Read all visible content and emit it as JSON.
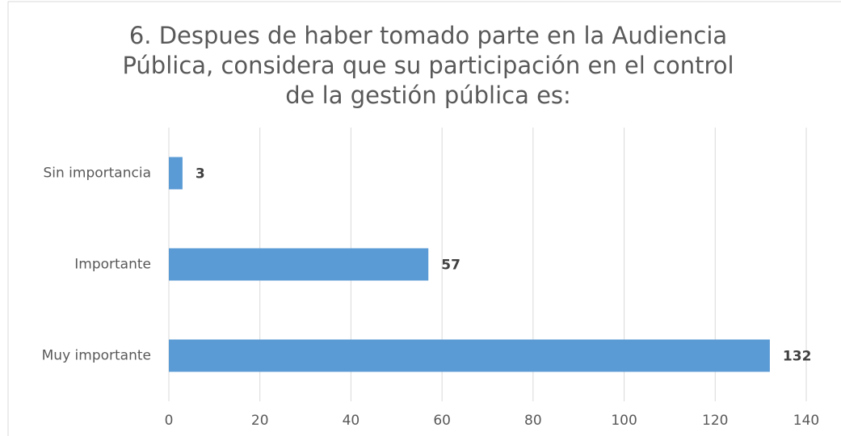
{
  "chart_data": {
    "type": "barh",
    "title": "6. Despues de haber tomado parte en la Audiencia Pública, considera que su participación en el control de la gestión pública es:",
    "categories": [
      "Sin importancia",
      "Importante",
      "Muy importante"
    ],
    "values": [
      3,
      57,
      132
    ],
    "color": "#5b9bd5",
    "xlim": [
      0,
      140
    ],
    "xticks": [
      0,
      20,
      40,
      60,
      80,
      100,
      120,
      140
    ],
    "grid": true
  }
}
